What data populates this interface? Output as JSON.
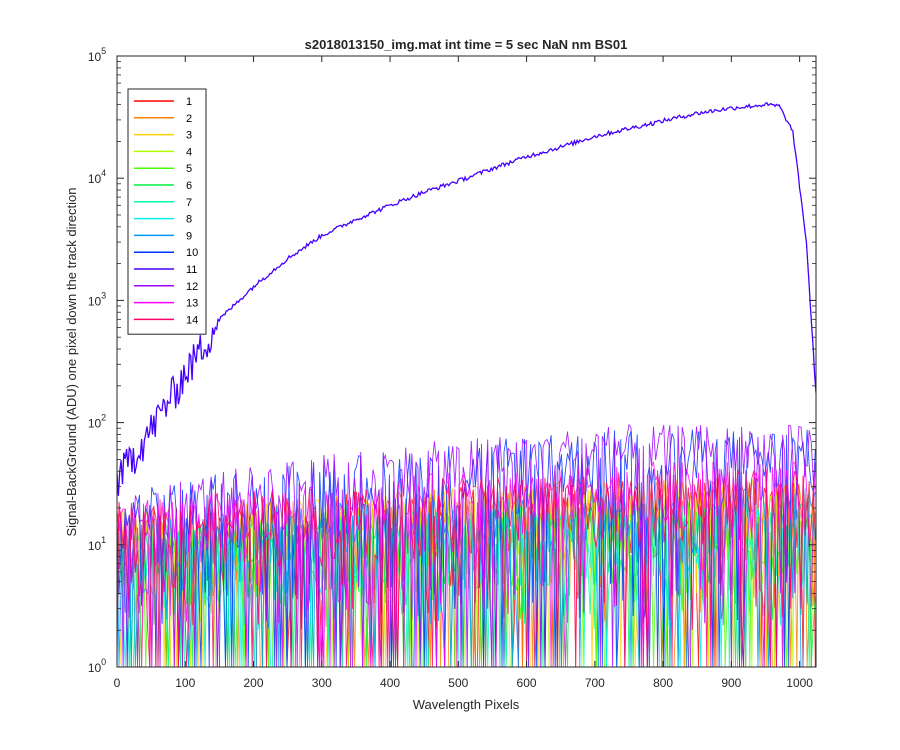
{
  "chart_data": {
    "type": "line",
    "title": "s2018013150_img.mat int time = 5 sec  NaN nm BS01",
    "xlabel": "Wavelength Pixels",
    "ylabel": "Signal-BackGround (ADU) one pixel down the track direction",
    "xlim": [
      0,
      1024
    ],
    "ylim": [
      1,
      100000
    ],
    "yscale": "log",
    "grid": false,
    "legend_position": "top-left",
    "x_ticks": [
      "0",
      "100",
      "200",
      "300",
      "400",
      "500",
      "600",
      "700",
      "800",
      "900",
      "1000"
    ],
    "x_tick_values": [
      0,
      100,
      200,
      300,
      400,
      500,
      600,
      700,
      800,
      900,
      1000
    ],
    "y_ticks": [
      {
        "base": "10",
        "exp": "0",
        "value": 1
      },
      {
        "base": "10",
        "exp": "1",
        "value": 10
      },
      {
        "base": "10",
        "exp": "2",
        "value": 100
      },
      {
        "base": "10",
        "exp": "3",
        "value": 1000
      },
      {
        "base": "10",
        "exp": "4",
        "value": 10000
      },
      {
        "base": "10",
        "exp": "5",
        "value": 100000
      }
    ],
    "series": [
      {
        "name": "1",
        "color": "#ff0000",
        "profile": "noise",
        "level": [
          12,
          22
        ]
      },
      {
        "name": "2",
        "color": "#ff7f00",
        "profile": "noise",
        "level": [
          12,
          22
        ]
      },
      {
        "name": "3",
        "color": "#ffd000",
        "profile": "noise",
        "level": [
          12,
          22
        ]
      },
      {
        "name": "4",
        "color": "#b0ff00",
        "profile": "noise",
        "level": [
          10,
          18
        ]
      },
      {
        "name": "5",
        "color": "#44ff00",
        "profile": "noise",
        "level": [
          8,
          14
        ]
      },
      {
        "name": "6",
        "color": "#00f040",
        "profile": "noise",
        "level": [
          8,
          14
        ]
      },
      {
        "name": "7",
        "color": "#00ffa0",
        "profile": "noise",
        "level": [
          8,
          14
        ]
      },
      {
        "name": "8",
        "color": "#00f0f0",
        "profile": "noise",
        "level": [
          8,
          14
        ]
      },
      {
        "name": "9",
        "color": "#0099ff",
        "profile": "noise",
        "level": [
          10,
          20
        ]
      },
      {
        "name": "10",
        "color": "#0033ff",
        "profile": "noise",
        "level": [
          16,
          55
        ]
      },
      {
        "name": "11",
        "color": "#4400ff",
        "profile": "signal",
        "x": [
          0,
          50,
          100,
          150,
          200,
          250,
          300,
          350,
          400,
          450,
          500,
          550,
          600,
          650,
          700,
          750,
          800,
          850,
          900,
          950,
          970,
          990,
          1010,
          1024
        ],
        "y": [
          35,
          90,
          260,
          700,
          1300,
          2200,
          3400,
          4600,
          6000,
          7700,
          9500,
          12000,
          15000,
          18000,
          22000,
          25500,
          29500,
          34000,
          37500,
          40000,
          39000,
          24000,
          3000,
          170
        ]
      },
      {
        "name": "12",
        "color": "#a000ff",
        "profile": "noise",
        "level": [
          16,
          60
        ]
      },
      {
        "name": "13",
        "color": "#ff00ff",
        "profile": "noise",
        "level": [
          14,
          30
        ]
      },
      {
        "name": "14",
        "color": "#ff0066",
        "profile": "noise",
        "level": [
          14,
          26
        ]
      }
    ]
  }
}
